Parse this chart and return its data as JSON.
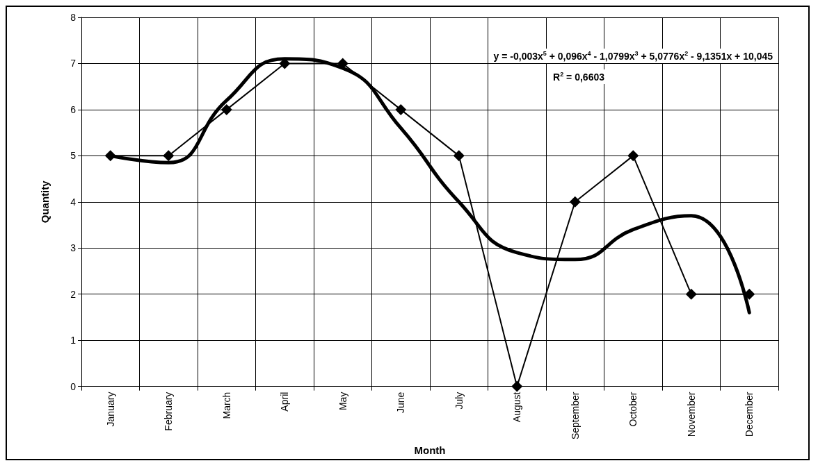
{
  "chart_data": {
    "type": "line",
    "xlabel": "Month",
    "ylabel": "Quantity",
    "categories": [
      "January",
      "February",
      "March",
      "April",
      "May",
      "June",
      "July",
      "August",
      "September",
      "October",
      "November",
      "December"
    ],
    "ylim": [
      0,
      8
    ],
    "yticks": [
      0,
      1,
      2,
      3,
      4,
      5,
      6,
      7,
      8
    ],
    "grid": true,
    "marker": "diamond",
    "line_style": "solid",
    "series": [
      {
        "color": "#000000",
        "values": [
          5,
          5,
          6,
          7,
          7,
          6,
          5,
          0,
          4,
          5,
          2,
          2
        ]
      },
      {
        "type": "line",
        "color": "#000000",
        "marker": "none",
        "values": [
          5.0,
          4.85,
          6.2,
          7.1,
          6.9,
          5.6,
          4.0,
          2.9,
          2.75,
          3.4,
          3.7,
          1.6
        ]
      }
    ],
    "annotations": [
      "y = -0,003x$^{5}$ + 0,096x$^{4}$ - 1,0799x$^{3}$ + 5,0776x$^{2}$ - 9,1351x + 10,045",
      "R$^{2}$ = 0,6603"
    ]
  }
}
